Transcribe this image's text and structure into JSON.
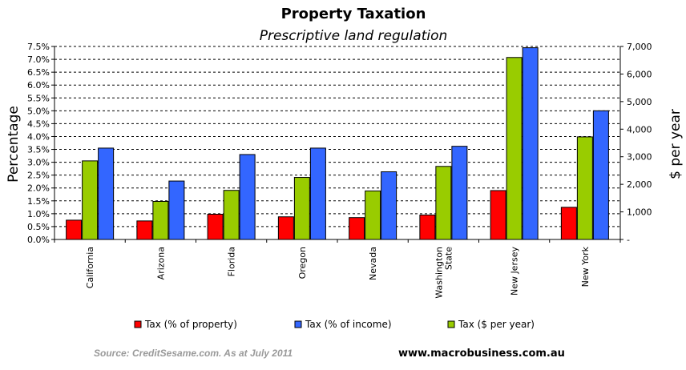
{
  "chart_data": {
    "type": "bar",
    "title": "Property Taxation",
    "subtitle": "Prescriptive land regulation",
    "ylabel": "Percentage",
    "y2label": "$ per year",
    "ylim": [
      0,
      7.5
    ],
    "y2lim": [
      0,
      7000
    ],
    "yticks": [
      "0.0%",
      "0.5%",
      "1.0%",
      "1.5%",
      "2.0%",
      "2.5%",
      "3.0%",
      "3.5%",
      "4.0%",
      "4.5%",
      "5.0%",
      "5.5%",
      "6.0%",
      "6.5%",
      "7.0%",
      "7.5%"
    ],
    "y2ticks": [
      "-",
      "1,000",
      "2,000",
      "3,000",
      "4,000",
      "5,000",
      "6,000",
      "7,000"
    ],
    "grid": true,
    "categories": [
      "California",
      "Arizona",
      "Florida",
      "Oregon",
      "Nevada",
      "Washington\nState",
      "New Jersey",
      "New York"
    ],
    "series": [
      {
        "name": "Tax (% of property)",
        "axis": "left",
        "color": "#ff0000",
        "values": [
          0.75,
          0.72,
          0.98,
          0.88,
          0.85,
          0.95,
          1.9,
          1.25
        ]
      },
      {
        "name": "Tax ($ per year)",
        "axis": "right",
        "color": "#99cc00",
        "values": [
          2850,
          1380,
          1780,
          2250,
          1760,
          2650,
          6600,
          3720
        ]
      },
      {
        "name": "Tax (% of income)",
        "axis": "left",
        "color": "#3366ff",
        "values": [
          3.55,
          2.27,
          3.3,
          3.55,
          2.63,
          3.62,
          7.45,
          5.0
        ]
      }
    ],
    "legend": [
      {
        "label": "Tax (% of property)",
        "color": "#ff0000"
      },
      {
        "label": "Tax (% of income)",
        "color": "#3366ff"
      },
      {
        "label": "Tax ($ per year)",
        "color": "#99cc00"
      }
    ],
    "legend_position": "bottom"
  },
  "footer": {
    "source": "Source: CreditSesame.com. As at July 2011",
    "site": "www.macrobusiness.com.au"
  }
}
